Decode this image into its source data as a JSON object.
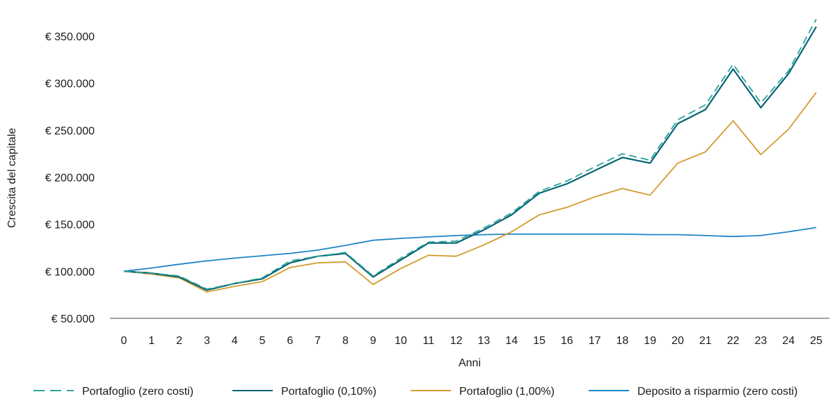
{
  "chart_data": {
    "type": "line",
    "xlabel": "Anni",
    "ylabel": "Crescita del capitale",
    "ylim": [
      50000,
      350000
    ],
    "yticks": [
      50000,
      100000,
      150000,
      200000,
      250000,
      300000,
      350000
    ],
    "ytick_labels": [
      "€ 50.000",
      "€ 100.000",
      "€ 150.000",
      "€ 200.000",
      "€ 250.000",
      "€ 300.000",
      "€ 350.000"
    ],
    "x": [
      0,
      1,
      2,
      3,
      4,
      5,
      6,
      7,
      8,
      9,
      10,
      11,
      12,
      13,
      14,
      15,
      16,
      17,
      18,
      19,
      20,
      21,
      22,
      23,
      24,
      25
    ],
    "x_tick_labels": [
      "0",
      "1",
      "2",
      "3",
      "4",
      "5",
      "6",
      "7",
      "8",
      "9",
      "10",
      "11",
      "12",
      "13",
      "14",
      "15",
      "16",
      "17",
      "18",
      "19",
      "20",
      "21",
      "22",
      "23",
      "24",
      "25"
    ],
    "grid": false,
    "legend_position": "bottom",
    "series": [
      {
        "name": "Portafoglio (zero costi)",
        "color": "#2aa19b",
        "dash": "dashed",
        "values": [
          100000,
          98000,
          95000,
          81000,
          87000,
          93000,
          111000,
          116000,
          120000,
          95000,
          114000,
          131000,
          132000,
          146000,
          162000,
          185000,
          196000,
          211000,
          225000,
          218000,
          261000,
          277000,
          320000,
          279000,
          313000,
          368000
        ]
      },
      {
        "name": "Portafoglio (0,10%)",
        "color": "#006373",
        "dash": "solid",
        "values": [
          100000,
          98000,
          94000,
          80000,
          87000,
          92000,
          109000,
          116000,
          119000,
          94000,
          112000,
          130000,
          130000,
          144000,
          160000,
          183000,
          193000,
          207000,
          221000,
          215000,
          257000,
          272000,
          315000,
          274000,
          310000,
          360000
        ]
      },
      {
        "name": "Portafoglio (1,00%)",
        "color": "#d49a2c",
        "dash": "solid",
        "values": [
          100000,
          97000,
          93000,
          78000,
          84000,
          89000,
          104000,
          109000,
          110000,
          86000,
          103000,
          117000,
          116000,
          128000,
          142000,
          160000,
          168000,
          179000,
          188000,
          181000,
          215000,
          227000,
          260000,
          224000,
          251000,
          290000
        ]
      },
      {
        "name": "Deposito a risparmio (zero costi)",
        "color": "#1c84c6",
        "dash": "solid",
        "values": [
          100000,
          103500,
          107500,
          111000,
          114000,
          116500,
          119000,
          122500,
          127500,
          133000,
          135000,
          136500,
          138000,
          139000,
          139500,
          139500,
          139500,
          139500,
          139500,
          139000,
          139000,
          138000,
          137000,
          138000,
          142000,
          146500
        ]
      }
    ]
  }
}
